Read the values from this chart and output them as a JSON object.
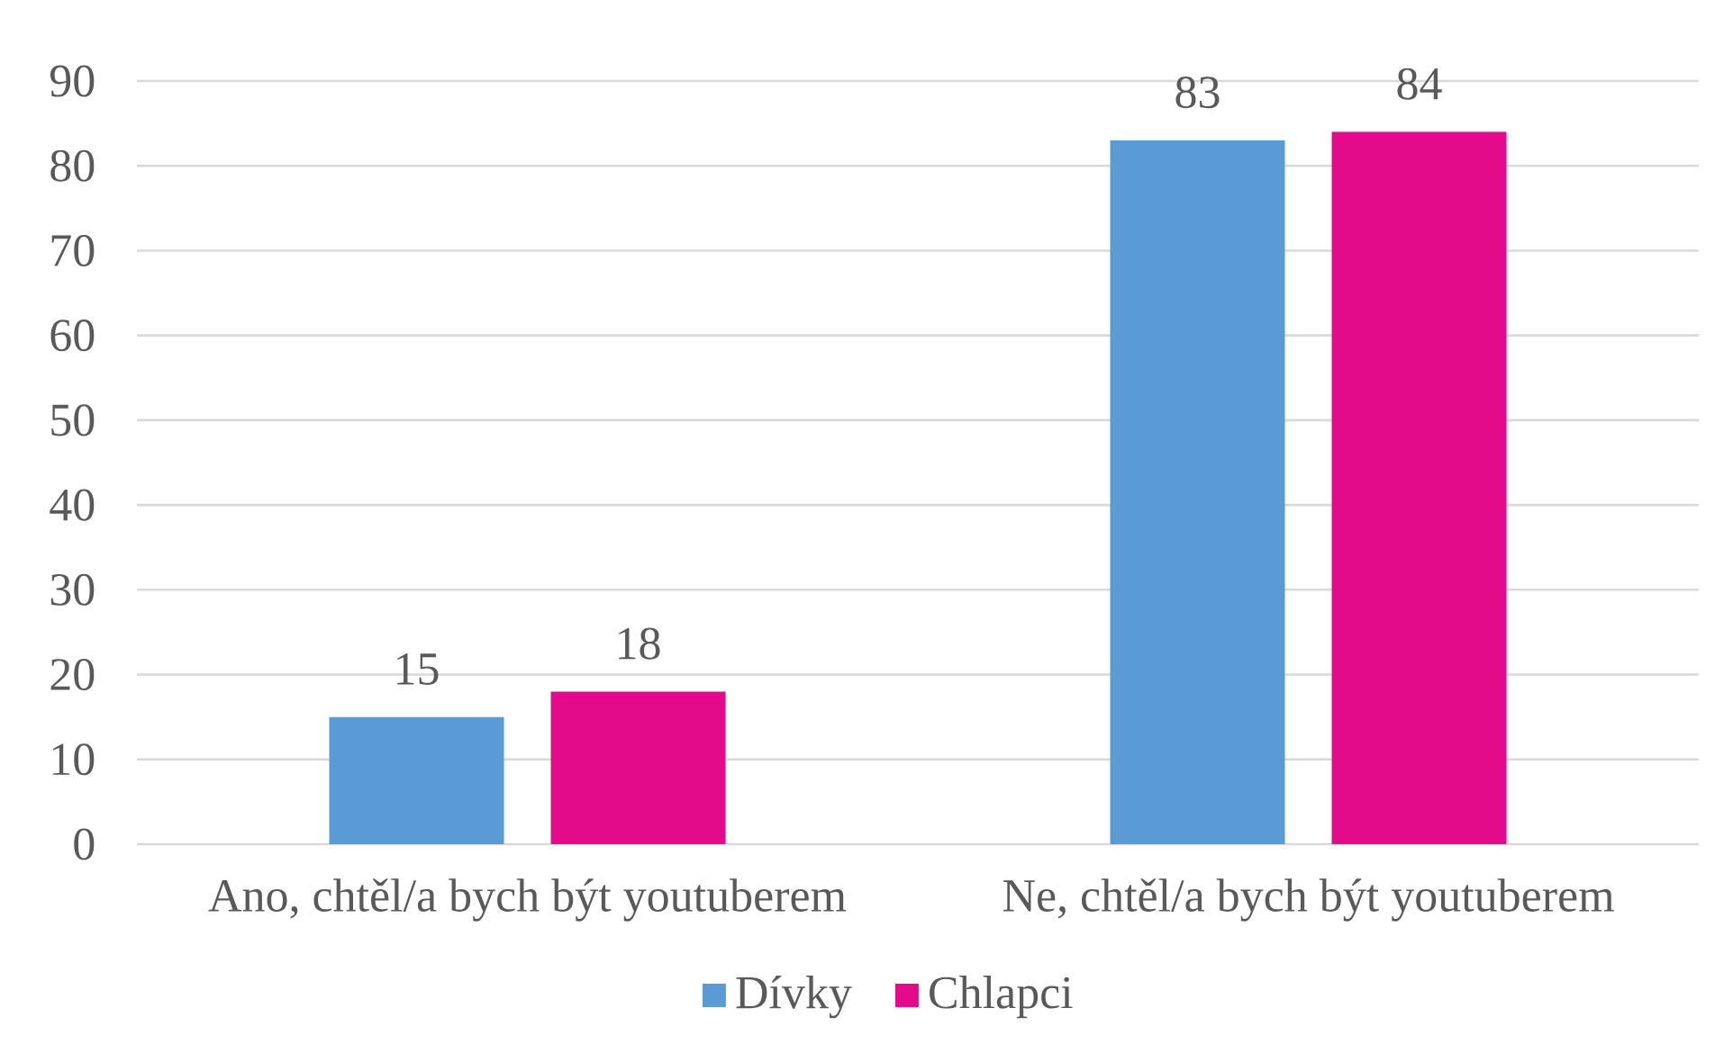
{
  "chart_data": {
    "type": "bar",
    "categories": [
      "Ano, chtěl/a bych být youtuberem",
      "Ne, chtěl/a bych být youtuberem"
    ],
    "series": [
      {
        "name": "Dívky",
        "color": "#5b9bd5",
        "values": [
          15,
          83
        ]
      },
      {
        "name": "Chlapci",
        "color": "#e30b89",
        "values": [
          18,
          84
        ]
      }
    ],
    "ylim": [
      0,
      90
    ],
    "yticks": [
      0,
      10,
      20,
      30,
      40,
      50,
      60,
      70,
      80,
      90
    ],
    "grid": "y",
    "legend": "bottom",
    "data_labels": true
  }
}
